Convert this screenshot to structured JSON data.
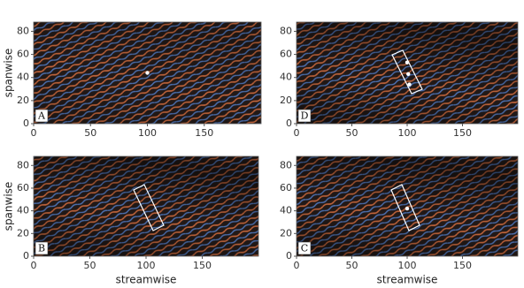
{
  "chart_data": [
    {
      "type": "scatter",
      "panel_label": "A",
      "ylabel": "spanwise",
      "xlim": [
        0,
        200
      ],
      "ylim": [
        0,
        88
      ],
      "xticks": [
        0,
        50,
        100,
        150
      ],
      "yticks": [
        0,
        20,
        40,
        60,
        80
      ],
      "x": [
        100
      ],
      "values": [
        44
      ],
      "color": "#ffffff"
    },
    {
      "type": "scatter",
      "panel_label": "D",
      "xlim": [
        0,
        200
      ],
      "ylim": [
        0,
        88
      ],
      "xticks": [
        0,
        50,
        100,
        150
      ],
      "yticks": [
        0,
        20,
        40,
        60,
        80
      ],
      "x": [
        100,
        101,
        102
      ],
      "values": [
        53,
        43,
        34
      ],
      "color": "#ffffff"
    },
    {
      "type": "scatter",
      "panel_label": "B",
      "ylabel": "spanwise",
      "xlabel": "streamwise",
      "xlim": [
        0,
        200
      ],
      "ylim": [
        0,
        88
      ],
      "xticks": [
        0,
        50,
        100,
        150
      ],
      "yticks": [
        0,
        20,
        40,
        60,
        80
      ],
      "x": [],
      "values": [],
      "color": "#ffffff"
    },
    {
      "type": "scatter",
      "panel_label": "C",
      "xlabel": "streamwise",
      "xlim": [
        0,
        200
      ],
      "ylim": [
        0,
        88
      ],
      "xticks": [
        0,
        50,
        100,
        150
      ],
      "yticks": [
        0,
        20,
        40,
        60,
        80
      ],
      "x": [
        100
      ],
      "values": [
        42
      ],
      "color": "#ffffff"
    }
  ]
}
